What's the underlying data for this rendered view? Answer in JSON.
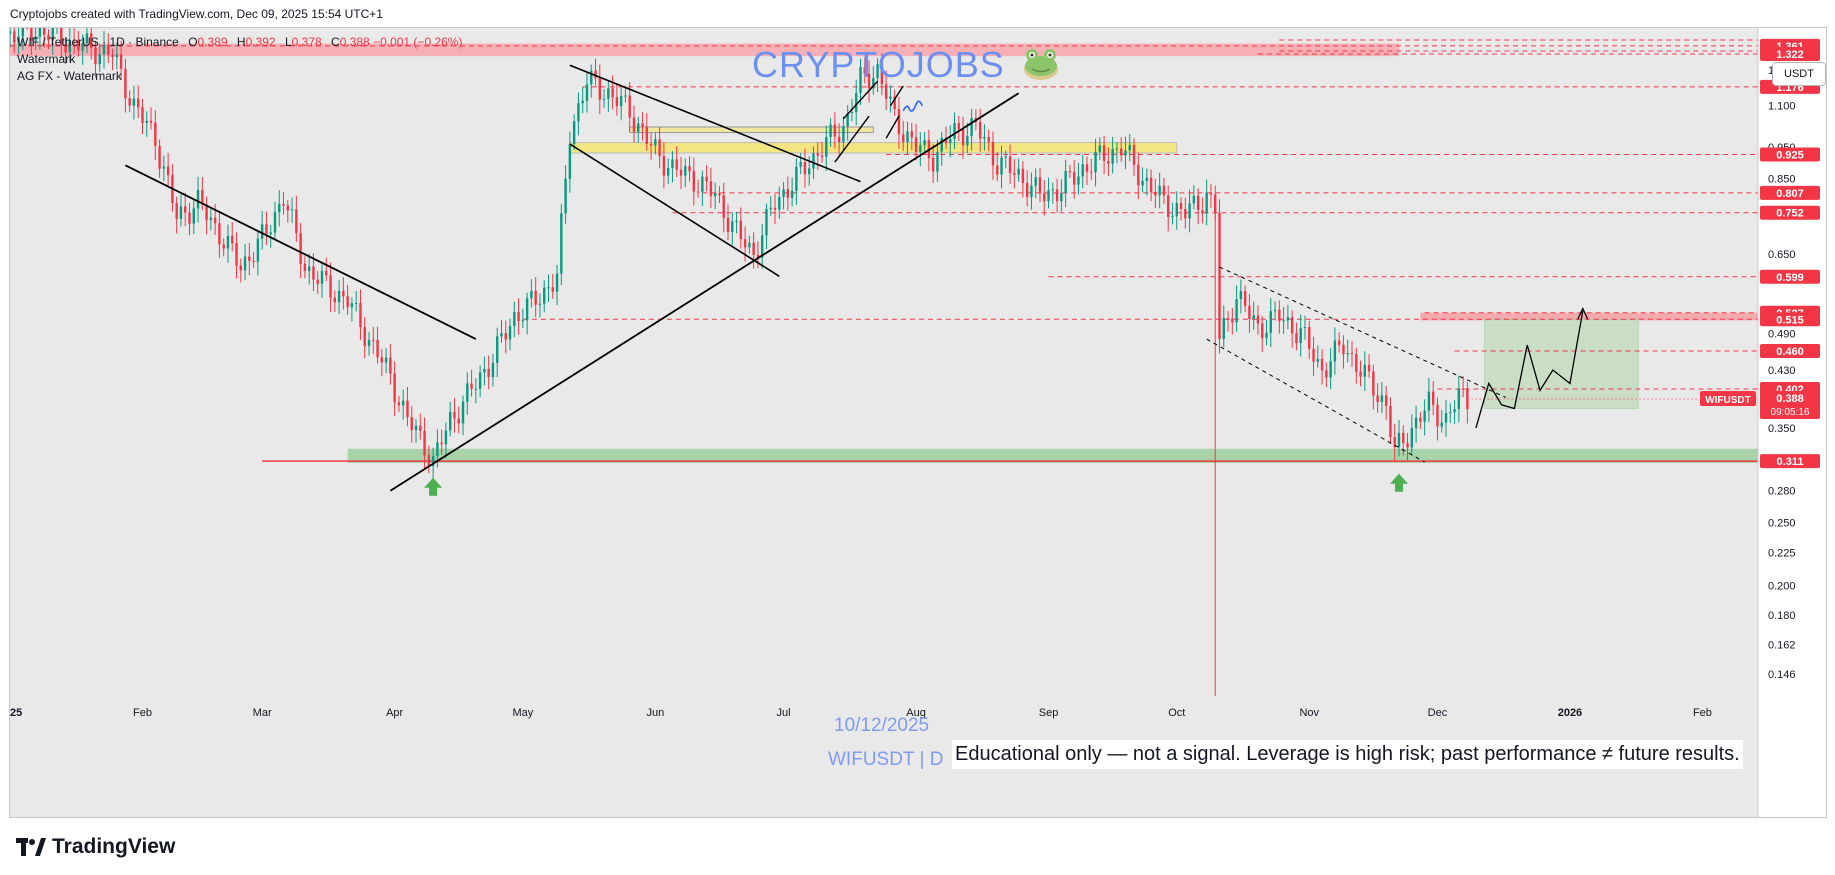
{
  "header": {
    "credit": "Cryptojobs created with TradingView.com, Dec 09, 2025 15:54 UTC+1"
  },
  "legend": {
    "symbol_line": "WIF / TetherUS · 1D · Binance",
    "open_label": "O",
    "open": "0.389",
    "high_label": "H",
    "high": "0.392",
    "low_label": "L",
    "low": "0.378",
    "close_label": "C",
    "close": "0.388",
    "change": "−0.001 (−0.26%)",
    "indicator1": "Watermark",
    "indicator2": "AG FX - Watermark"
  },
  "currency_badge": "USDT",
  "watermark": {
    "title": "CRYPTOJOBS",
    "date": "10/12/2025",
    "symbol": "WIFUSDT | D"
  },
  "disclaimer": "Educational only — not a signal. Leverage is high risk; past performance ≠ future results.",
  "footer": {
    "brand": "TradingView"
  },
  "colors": {
    "up": "#089981",
    "down": "#f23645",
    "level": "#f23645",
    "zone_red": "#f7a9ae",
    "zone_yellow": "#f3e682",
    "zone_green": "#9ccf9c",
    "trendline": "#000000",
    "watermark": "#6d8ff0"
  },
  "chart_data": {
    "type": "candlestick",
    "symbol": "WIFUSDT",
    "interval": "1D",
    "y_scale": "log",
    "ylim": [
      0.135,
      1.45
    ],
    "y_ticks": [
      "1.250",
      "1.100",
      "0.950",
      "0.850",
      "0.650",
      "0.490",
      "0.430",
      "0.350",
      "0.280",
      "0.250",
      "0.225",
      "0.200",
      "0.180",
      "0.162",
      "0.146"
    ],
    "x_ticks": [
      "2025",
      "Feb",
      "Mar",
      "Apr",
      "May",
      "Jun",
      "Jul",
      "Aug",
      "Sep",
      "Oct",
      "Nov",
      "Dec",
      "2026",
      "Feb"
    ],
    "x_tick_dates": [
      "2025-01-01",
      "2025-02-01",
      "2025-03-01",
      "2025-04-01",
      "2025-05-01",
      "2025-06-01",
      "2025-07-01",
      "2025-08-01",
      "2025-09-01",
      "2025-10-01",
      "2025-11-01",
      "2025-12-01",
      "2026-01-01",
      "2026-02-01"
    ],
    "xlim": [
      "2025-01-01",
      "2026-02-14"
    ],
    "price_levels": [
      "1.361",
      "1.322",
      "1.176",
      "0.925",
      "0.807",
      "0.752",
      "0.599",
      "0.527",
      "0.515",
      "0.460",
      "0.402",
      "0.311"
    ],
    "current_price": {
      "symbol": "WIFUSDT",
      "value": "0.388",
      "countdown": "09:05:16"
    },
    "close_series": [
      [
        "2025-01-01",
        1.42
      ],
      [
        "2025-01-08",
        1.44
      ],
      [
        "2025-01-15",
        1.38
      ],
      [
        "2025-01-20",
        1.35
      ],
      [
        "2025-01-25",
        1.32
      ],
      [
        "2025-01-30",
        1.1
      ],
      [
        "2025-02-04",
        0.98
      ],
      [
        "2025-02-09",
        0.74
      ],
      [
        "2025-02-14",
        0.78
      ],
      [
        "2025-02-19",
        0.7
      ],
      [
        "2025-02-24",
        0.62
      ],
      [
        "2025-03-02",
        0.7
      ],
      [
        "2025-03-06",
        0.8
      ],
      [
        "2025-03-11",
        0.62
      ],
      [
        "2025-03-16",
        0.58
      ],
      [
        "2025-03-21",
        0.55
      ],
      [
        "2025-03-26",
        0.48
      ],
      [
        "2025-03-31",
        0.42
      ],
      [
        "2025-04-04",
        0.36
      ],
      [
        "2025-04-08",
        0.33
      ],
      [
        "2025-04-10",
        0.31
      ],
      [
        "2025-04-14",
        0.36
      ],
      [
        "2025-04-19",
        0.4
      ],
      [
        "2025-04-24",
        0.45
      ],
      [
        "2025-04-29",
        0.52
      ],
      [
        "2025-05-04",
        0.55
      ],
      [
        "2025-05-09",
        0.6
      ],
      [
        "2025-05-12",
        1.0
      ],
      [
        "2025-05-16",
        1.2
      ],
      [
        "2025-05-21",
        1.15
      ],
      [
        "2025-05-26",
        1.08
      ],
      [
        "2025-05-31",
        0.95
      ],
      [
        "2025-06-05",
        0.88
      ],
      [
        "2025-06-10",
        0.85
      ],
      [
        "2025-06-15",
        0.8
      ],
      [
        "2025-06-20",
        0.7
      ],
      [
        "2025-06-24",
        0.65
      ],
      [
        "2025-06-29",
        0.78
      ],
      [
        "2025-07-04",
        0.85
      ],
      [
        "2025-07-10",
        0.95
      ],
      [
        "2025-07-15",
        1.02
      ],
      [
        "2025-07-19",
        1.2
      ],
      [
        "2025-07-23",
        1.25
      ],
      [
        "2025-07-27",
        1.05
      ],
      [
        "2025-08-01",
        0.95
      ],
      [
        "2025-08-05",
        0.92
      ],
      [
        "2025-08-10",
        1.0
      ],
      [
        "2025-08-15",
        1.02
      ],
      [
        "2025-08-20",
        0.9
      ],
      [
        "2025-08-25",
        0.86
      ],
      [
        "2025-08-30",
        0.8
      ],
      [
        "2025-09-04",
        0.82
      ],
      [
        "2025-09-09",
        0.88
      ],
      [
        "2025-09-14",
        0.92
      ],
      [
        "2025-09-18",
        0.95
      ],
      [
        "2025-09-23",
        0.85
      ],
      [
        "2025-09-28",
        0.78
      ],
      [
        "2025-10-03",
        0.75
      ],
      [
        "2025-10-08",
        0.8
      ],
      [
        "2025-10-10",
        0.76
      ],
      [
        "2025-10-11",
        0.48
      ],
      [
        "2025-10-15",
        0.56
      ],
      [
        "2025-10-20",
        0.5
      ],
      [
        "2025-10-25",
        0.52
      ],
      [
        "2025-10-30",
        0.49
      ],
      [
        "2025-11-04",
        0.43
      ],
      [
        "2025-11-09",
        0.47
      ],
      [
        "2025-11-14",
        0.42
      ],
      [
        "2025-11-19",
        0.38
      ],
      [
        "2025-11-21",
        0.32
      ],
      [
        "2025-11-25",
        0.35
      ],
      [
        "2025-11-29",
        0.38
      ],
      [
        "2025-12-03",
        0.36
      ],
      [
        "2025-12-06",
        0.39
      ],
      [
        "2025-12-09",
        0.388
      ]
    ]
  }
}
